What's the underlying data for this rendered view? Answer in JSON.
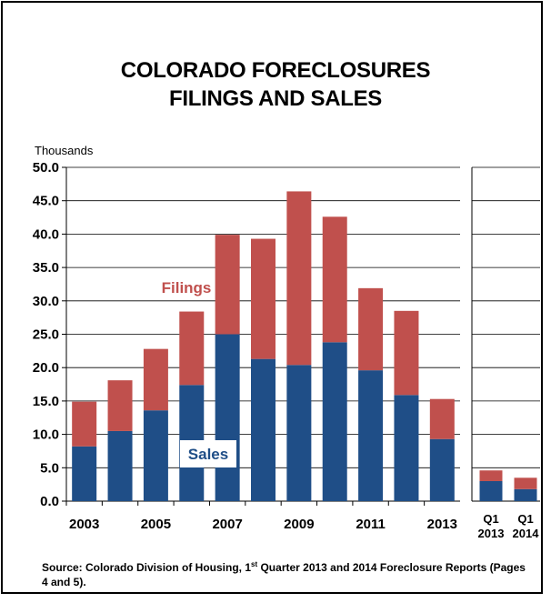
{
  "header": {
    "title_line1": "COLORADO FORECLOSURES",
    "title_line2": "FILINGS AND SALES"
  },
  "footer": {
    "source_prefix": "Source: Colorado Division of Housing, 1",
    "source_sup": "st",
    "source_suffix": " Quarter 2013 and 2014 Foreclosure Reports (Pages 4 and 5)."
  },
  "colors": {
    "sales": "#1f4e87",
    "filings": "#c0504d",
    "gridline": "#000000"
  },
  "chart_data": [
    {
      "type": "bar",
      "stacked": true,
      "title": "COLORADO FORECLOSURES FILINGS AND SALES",
      "ylabel": "Thousands",
      "ylim": [
        0,
        50
      ],
      "yticks": [
        "0.0",
        "5.0",
        "10.0",
        "15.0",
        "20.0",
        "25.0",
        "30.0",
        "35.0",
        "40.0",
        "45.0",
        "50.0"
      ],
      "grid": true,
      "categories": [
        "2003",
        "2004",
        "2005",
        "2006",
        "2007",
        "2008",
        "2009",
        "2010",
        "2011",
        "2012",
        "2013"
      ],
      "x_tick_labels": [
        "2003",
        "2005",
        "2007",
        "2009",
        "2011",
        "2013"
      ],
      "series": [
        {
          "name": "Sales",
          "values": [
            8.2,
            10.5,
            13.6,
            17.4,
            25.0,
            21.3,
            20.4,
            23.8,
            19.6,
            15.9,
            9.3
          ]
        },
        {
          "name": "Filings",
          "values": [
            6.7,
            7.6,
            9.2,
            11.0,
            14.9,
            18.0,
            26.0,
            18.8,
            12.3,
            12.6,
            6.0
          ]
        }
      ],
      "annotations": [
        "Filings",
        "Sales"
      ]
    },
    {
      "type": "bar",
      "stacked": true,
      "ylim": [
        0,
        50
      ],
      "grid": true,
      "categories": [
        [
          "Q1",
          "2013"
        ],
        [
          "Q1",
          "2014"
        ]
      ],
      "series": [
        {
          "name": "Sales",
          "values": [
            3.0,
            1.8
          ]
        },
        {
          "name": "Filings",
          "values": [
            1.6,
            1.7
          ]
        }
      ]
    }
  ]
}
